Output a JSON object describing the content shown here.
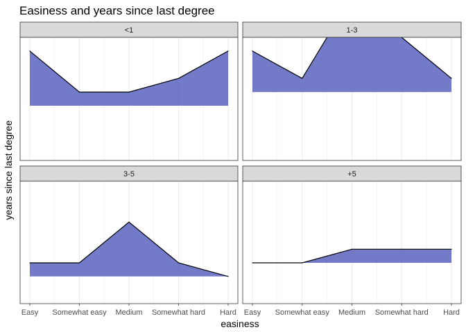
{
  "chart_data": {
    "type": "area",
    "title": "Easiness and years since last degree",
    "xlabel": "easiness",
    "ylabel": "years since last degree",
    "categories": [
      "Easy",
      "Somewhat easy",
      "Medium",
      "Somewhat hard",
      "Hard"
    ],
    "ylim": [
      0,
      9
    ],
    "grid": true,
    "facets": [
      {
        "label": "<1",
        "ribbon_low": [
          4,
          4,
          4,
          4,
          4
        ],
        "ribbon_high": [
          8,
          5,
          5,
          6,
          8
        ]
      },
      {
        "label": "1-3",
        "ribbon_low": [
          5,
          5,
          5,
          5,
          5
        ],
        "ribbon_high": [
          8,
          6,
          12,
          9,
          6
        ]
      },
      {
        "label": "3-5",
        "ribbon_low": [
          2,
          2,
          2,
          2,
          2
        ],
        "ribbon_high": [
          3,
          3,
          6,
          3,
          2
        ]
      },
      {
        "label": "+5",
        "ribbon_low": [
          3,
          3,
          3,
          3,
          3
        ],
        "ribbon_high": [
          3,
          3,
          4,
          4,
          4
        ]
      }
    ],
    "fill_color": "#5A64BE",
    "line_color": "#000000",
    "strip_color": "#D9D9D9"
  }
}
